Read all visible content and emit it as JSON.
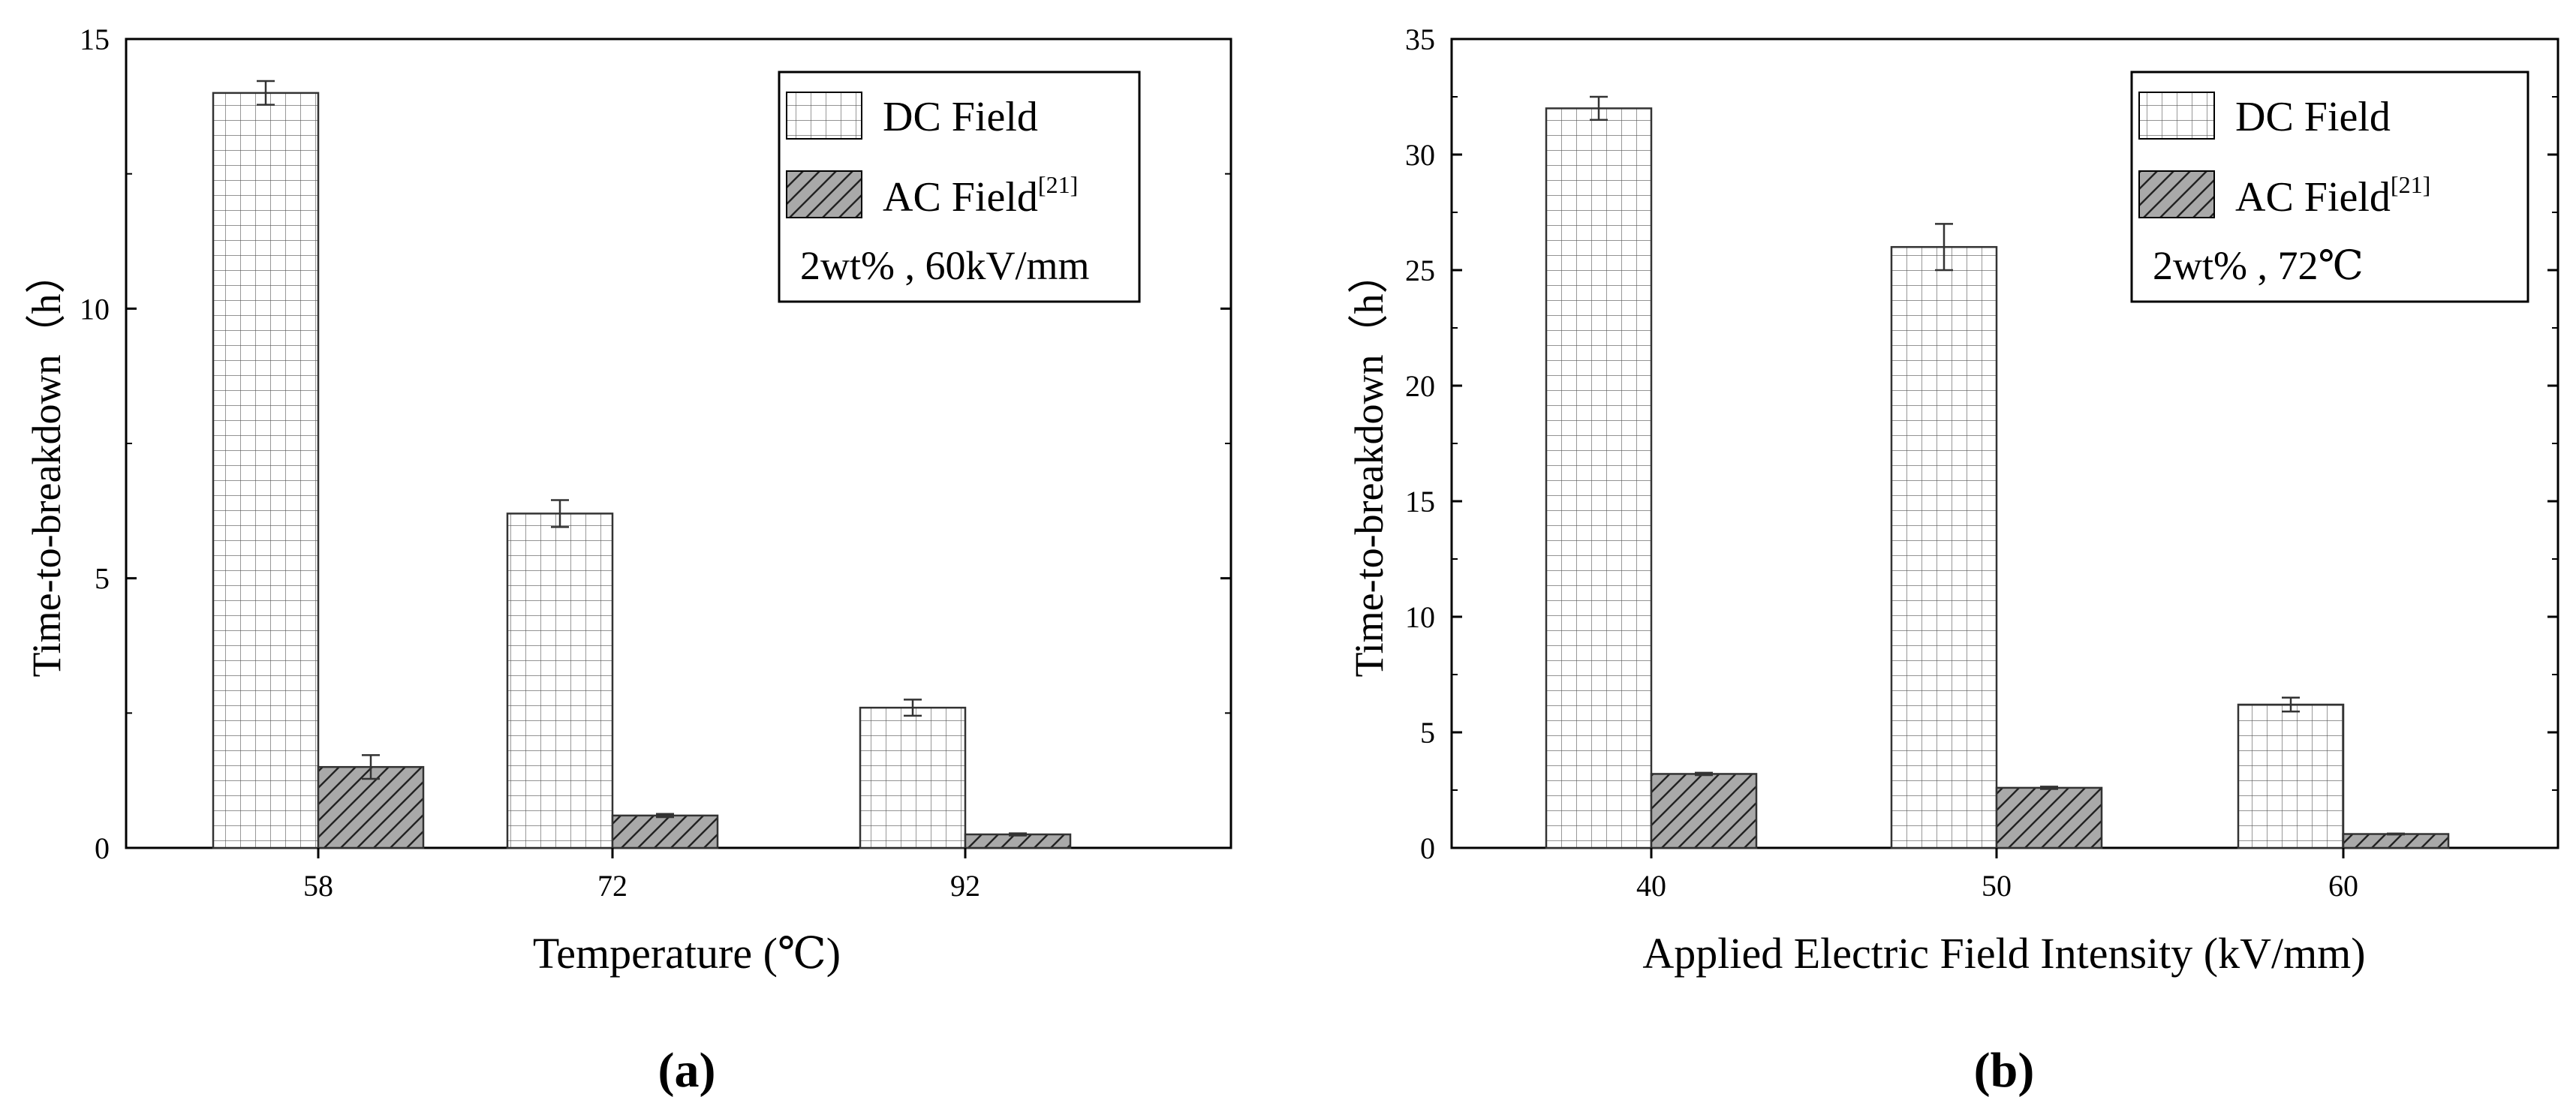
{
  "chart_data": [
    {
      "type": "bar",
      "panel_label": "(a)",
      "xlabel": "Temperature (℃)",
      "ylabel": "Time-to-breakdown（h）",
      "ylim": [
        0,
        15
      ],
      "yticks": [
        0,
        5,
        10,
        15
      ],
      "categories": [
        "58",
        "72",
        "92"
      ],
      "series": [
        {
          "name": "DC Field",
          "values": [
            14.0,
            6.2,
            2.6
          ],
          "errors": [
            0.22,
            0.25,
            0.15
          ]
        },
        {
          "name": "AC Field[21]",
          "values": [
            1.5,
            0.6,
            0.25
          ],
          "errors": [
            0.22,
            0.03,
            0.02
          ]
        }
      ],
      "annotation": "2wt% , 60kV/mm",
      "legend_position": "top-right"
    },
    {
      "type": "bar",
      "panel_label": "(b)",
      "xlabel": "Applied Electric Field Intensity (kV/mm)",
      "ylabel": "Time-to-breakdown（h）",
      "ylim": [
        0,
        35
      ],
      "yticks": [
        0,
        5,
        10,
        15,
        20,
        25,
        30,
        35
      ],
      "categories": [
        "40",
        "50",
        "60"
      ],
      "series": [
        {
          "name": "DC Field",
          "values": [
            32.0,
            26.0,
            6.2
          ],
          "errors": [
            0.5,
            1.0,
            0.3
          ]
        },
        {
          "name": "AC Field[21]",
          "values": [
            3.2,
            2.6,
            0.6
          ],
          "errors": [
            0.05,
            0.05,
            0.02
          ]
        }
      ],
      "annotation": "2wt% , 72℃",
      "legend_position": "top-right"
    }
  ],
  "legend": {
    "dc_label": "DC Field",
    "ac_label_main": "AC Field",
    "ac_label_sup": "[21]"
  }
}
